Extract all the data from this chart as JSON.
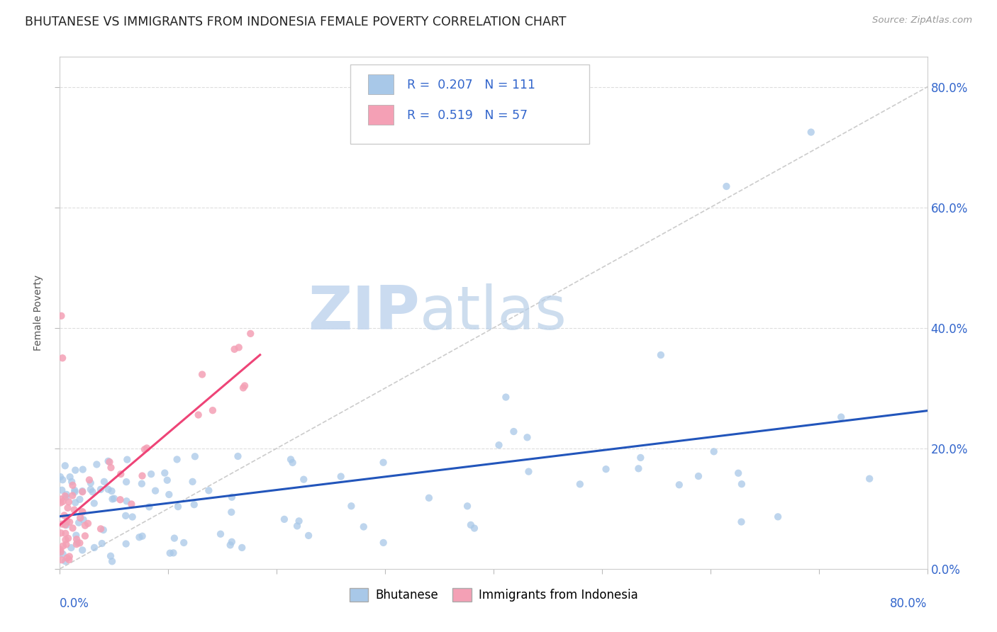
{
  "title": "BHUTANESE VS IMMIGRANTS FROM INDONESIA FEMALE POVERTY CORRELATION CHART",
  "source": "Source: ZipAtlas.com",
  "ylabel": "Female Poverty",
  "blue_R": "0.207",
  "blue_N": "111",
  "pink_R": "0.519",
  "pink_N": "57",
  "blue_color": "#a8c8e8",
  "pink_color": "#f4a0b5",
  "blue_line_color": "#2255bb",
  "pink_line_color": "#ee4477",
  "diagonal_color": "#cccccc",
  "legend_label_blue": "Bhutanese",
  "legend_label_pink": "Immigrants from Indonesia",
  "watermark_ZIP": "ZIP",
  "watermark_atlas": "atlas",
  "xlim": [
    0.0,
    0.8
  ],
  "ylim": [
    0.0,
    0.85
  ],
  "blue_seed": 99,
  "pink_seed": 77
}
